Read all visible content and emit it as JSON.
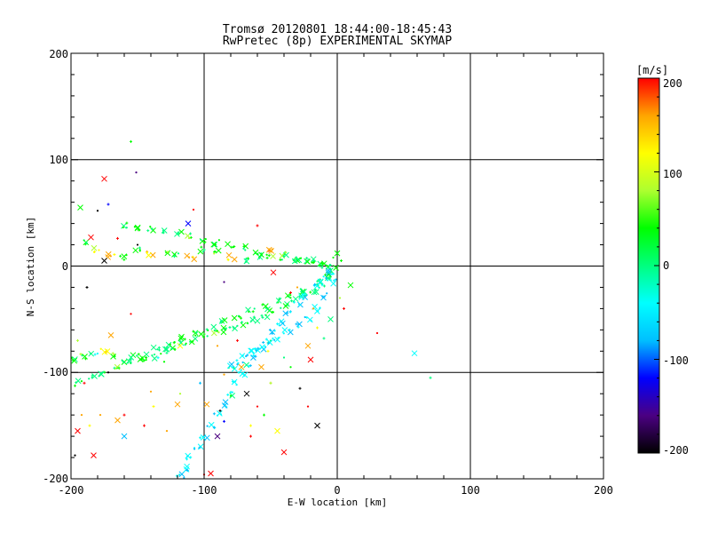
{
  "chart_data": {
    "type": "scatter",
    "title": "Tromsø 20120801 18:44:00-18:45:43",
    "subtitle": "RwPretec (8p) EXPERIMENTAL SKYMAP",
    "xlabel": "E-W location [km]",
    "ylabel": "N-S location [km]",
    "xlim": [
      -200,
      200
    ],
    "ylim": [
      -200,
      200
    ],
    "xticks": [
      "-200",
      "-100",
      "0",
      "100",
      "200"
    ],
    "yticks": [
      "-200",
      "-100",
      "0",
      "100",
      "200"
    ],
    "grid": true,
    "colorbar": {
      "label": "[m/s]",
      "range": [
        -200,
        200
      ],
      "ticks": [
        "200",
        "100",
        "0",
        "-100",
        "-200"
      ],
      "colors": [
        "#000000",
        "#4b0082",
        "#0000ff",
        "#00bfff",
        "#00ffff",
        "#00ff7f",
        "#00ff00",
        "#adff2f",
        "#ffff00",
        "#ffa500",
        "#ff0000"
      ]
    },
    "markers": [
      "x",
      "+",
      "dot"
    ],
    "series": [
      {
        "points": [
          [
            -197,
            -88,
            30
          ],
          [
            -190,
            -85,
            40
          ],
          [
            -183,
            -82,
            -10
          ],
          [
            -175,
            -80,
            150
          ],
          [
            -168,
            -83,
            60
          ],
          [
            -160,
            -90,
            20
          ],
          [
            -152,
            -85,
            10
          ],
          [
            -145,
            -87,
            30
          ],
          [
            -137,
            -85,
            -5
          ],
          [
            -130,
            -80,
            20
          ],
          [
            -122,
            -76,
            40
          ],
          [
            -115,
            -72,
            10
          ],
          [
            -108,
            -69,
            30
          ],
          [
            -100,
            -66,
            20
          ],
          [
            -92,
            -63,
            50
          ],
          [
            -85,
            -60,
            10
          ],
          [
            -78,
            -57,
            20
          ],
          [
            -70,
            -54,
            30
          ],
          [
            -62,
            -50,
            0
          ],
          [
            -55,
            -46,
            20
          ],
          [
            -48,
            -42,
            40
          ],
          [
            -40,
            -38,
            10
          ],
          [
            -33,
            -32,
            20
          ],
          [
            -26,
            -28,
            -10
          ],
          [
            -18,
            -24,
            20
          ],
          [
            -12,
            -18,
            0
          ],
          [
            -6,
            -10,
            10
          ],
          [
            -2,
            -4,
            20
          ]
        ]
      },
      {
        "points": [
          [
            -195,
            -110,
            20
          ],
          [
            -185,
            -104,
            30
          ],
          [
            -175,
            -100,
            10
          ],
          [
            -165,
            -95,
            40
          ],
          [
            -155,
            -90,
            20
          ],
          [
            -145,
            -84,
            30
          ],
          [
            -135,
            -78,
            10
          ],
          [
            -125,
            -73,
            20
          ],
          [
            -115,
            -68,
            50
          ],
          [
            -105,
            -64,
            20
          ],
          [
            -95,
            -58,
            30
          ],
          [
            -85,
            -52,
            10
          ],
          [
            -75,
            -48,
            20
          ],
          [
            -65,
            -42,
            30
          ],
          [
            -55,
            -38,
            10
          ],
          [
            -45,
            -33,
            20
          ],
          [
            -35,
            -27,
            40
          ],
          [
            -25,
            -22,
            10
          ],
          [
            -15,
            -15,
            20
          ],
          [
            -8,
            -9,
            30
          ]
        ]
      },
      {
        "points": [
          [
            -118,
            -198,
            -50
          ],
          [
            -115,
            -190,
            -60
          ],
          [
            -110,
            -180,
            -40
          ],
          [
            -105,
            -170,
            -50
          ],
          [
            -100,
            -160,
            -55
          ],
          [
            -95,
            -150,
            -45
          ],
          [
            -90,
            -140,
            -60
          ],
          [
            -85,
            -130,
            -50
          ],
          [
            -80,
            -120,
            -40
          ],
          [
            -76,
            -110,
            -55
          ],
          [
            -72,
            -100,
            -50
          ],
          [
            -68,
            -92,
            -45
          ],
          [
            -63,
            -85,
            -60
          ],
          [
            -58,
            -78,
            -50
          ],
          [
            -53,
            -70,
            -40
          ],
          [
            -48,
            -62,
            -55
          ],
          [
            -42,
            -54,
            -50
          ],
          [
            -36,
            -45,
            -45
          ],
          [
            -30,
            -36,
            -60
          ],
          [
            -24,
            -28,
            -50
          ],
          [
            -17,
            -20,
            -40
          ],
          [
            -10,
            -12,
            -55
          ],
          [
            -4,
            -5,
            -50
          ]
        ]
      },
      {
        "points": [
          [
            -80,
            -96,
            -40
          ],
          [
            -77,
            -90,
            -60
          ],
          [
            -70,
            -86,
            -50
          ],
          [
            -62,
            -80,
            -40
          ],
          [
            -54,
            -74,
            -55
          ],
          [
            -46,
            -68,
            -50
          ],
          [
            -38,
            -62,
            -45
          ],
          [
            -30,
            -56,
            -60
          ],
          [
            -22,
            -50,
            -50
          ],
          [
            -15,
            -40,
            -40
          ],
          [
            -8,
            -28,
            -55
          ],
          [
            -3,
            -15,
            -50
          ]
        ]
      },
      {
        "points": [
          [
            -190,
            22,
            10
          ],
          [
            -180,
            15,
            120
          ],
          [
            -170,
            10,
            150
          ],
          [
            -160,
            8,
            30
          ],
          [
            -150,
            15,
            20
          ],
          [
            -140,
            12,
            150
          ],
          [
            -130,
            12,
            40
          ],
          [
            -120,
            10,
            20
          ],
          [
            -110,
            8,
            160
          ],
          [
            -100,
            16,
            30
          ],
          [
            -90,
            14,
            40
          ],
          [
            -80,
            8,
            150
          ],
          [
            -70,
            6,
            20
          ],
          [
            -60,
            10,
            30
          ],
          [
            -50,
            16,
            160
          ],
          [
            -40,
            12,
            60
          ],
          [
            -30,
            6,
            20
          ],
          [
            -20,
            5,
            30
          ],
          [
            -12,
            2,
            10
          ],
          [
            -5,
            0,
            20
          ]
        ]
      },
      {
        "points": [
          [
            -160,
            38,
            20
          ],
          [
            -150,
            36,
            30
          ],
          [
            -140,
            35,
            10
          ],
          [
            -130,
            33,
            20
          ],
          [
            -120,
            30,
            20
          ],
          [
            -110,
            28,
            40
          ],
          [
            -100,
            24,
            20
          ],
          [
            -90,
            22,
            30
          ],
          [
            -80,
            20,
            20
          ],
          [
            -70,
            17,
            30
          ],
          [
            -60,
            13,
            20
          ],
          [
            -50,
            10,
            40
          ],
          [
            -40,
            8,
            20
          ],
          [
            -30,
            5,
            30
          ],
          [
            -20,
            3,
            20
          ],
          [
            -10,
            1,
            30
          ]
        ]
      },
      {
        "points": [
          [
            -175,
            82,
            200
          ],
          [
            -172,
            58,
            -120
          ],
          [
            -180,
            52,
            -200
          ],
          [
            -185,
            27,
            190
          ],
          [
            -165,
            26,
            190
          ],
          [
            -150,
            20,
            -200
          ],
          [
            -175,
            5,
            -200
          ],
          [
            -188,
            -20,
            -200
          ],
          [
            -155,
            -45,
            190
          ],
          [
            -170,
            -65,
            150
          ],
          [
            -190,
            -110,
            180
          ],
          [
            -178,
            -140,
            170
          ],
          [
            -160,
            -160,
            -80
          ],
          [
            -145,
            -150,
            190
          ],
          [
            -128,
            -155,
            160
          ],
          [
            -90,
            -160,
            -150
          ],
          [
            -85,
            -146,
            -120
          ],
          [
            -60,
            -132,
            180
          ],
          [
            -40,
            -175,
            200
          ],
          [
            -28,
            -115,
            -200
          ],
          [
            -22,
            -132,
            190
          ],
          [
            -15,
            -150,
            -190
          ],
          [
            -55,
            -140,
            20
          ],
          [
            -108,
            53,
            190
          ],
          [
            -112,
            40,
            -120
          ],
          [
            -60,
            38,
            190
          ],
          [
            -85,
            -15,
            -150
          ],
          [
            -48,
            -6,
            190
          ],
          [
            -35,
            -25,
            180
          ],
          [
            -30,
            -20,
            150
          ],
          [
            -68,
            -120,
            -200
          ],
          [
            -50,
            -110,
            160
          ],
          [
            -100,
            -196,
            190
          ],
          [
            -95,
            -195,
            180
          ],
          [
            -65,
            -160,
            200
          ]
        ]
      },
      {
        "points": [
          [
            -155,
            117,
            20
          ],
          [
            -151,
            88,
            -180
          ],
          [
            -193,
            55,
            40
          ],
          [
            -195,
            -70,
            80
          ],
          [
            -192,
            -140,
            160
          ],
          [
            -183,
            -178,
            200
          ],
          [
            -160,
            -140,
            190
          ],
          [
            -140,
            -118,
            150
          ],
          [
            -120,
            -130,
            170
          ],
          [
            -103,
            -110,
            -100
          ],
          [
            -85,
            -102,
            160
          ],
          [
            -72,
            -95,
            140
          ],
          [
            -50,
            -110,
            90
          ],
          [
            -35,
            -95,
            20
          ],
          [
            -20,
            -88,
            190
          ],
          [
            -15,
            -58,
            120
          ],
          [
            -18,
            -40,
            160
          ],
          [
            -5,
            -50,
            10
          ],
          [
            5,
            -40,
            190
          ],
          [
            30,
            -63,
            180
          ],
          [
            58,
            -82,
            -30
          ],
          [
            70,
            -105,
            0
          ],
          [
            -90,
            -75,
            160
          ],
          [
            -118,
            -75,
            100
          ],
          [
            -65,
            -150,
            120
          ],
          [
            -130,
            -90,
            40
          ],
          [
            -45,
            -155,
            100
          ],
          [
            -75,
            -70,
            180
          ]
        ]
      },
      {
        "points": [
          [
            -197,
            -178,
            -200
          ],
          [
            -195,
            -155,
            180
          ],
          [
            -186,
            -150,
            120
          ],
          [
            -172,
            -100,
            -200
          ],
          [
            -165,
            -145,
            150
          ],
          [
            -138,
            -132,
            100
          ],
          [
            -118,
            -120,
            60
          ],
          [
            -98,
            -130,
            140
          ],
          [
            -88,
            -136,
            -190
          ],
          [
            -80,
            -122,
            40
          ],
          [
            -57,
            -95,
            150
          ],
          [
            -52,
            -80,
            130
          ],
          [
            -40,
            -86,
            10
          ],
          [
            -22,
            -75,
            140
          ],
          [
            -10,
            -68,
            10
          ],
          [
            2,
            -30,
            60
          ],
          [
            10,
            -18,
            20
          ],
          [
            3,
            5,
            30
          ],
          [
            -3,
            8,
            20
          ],
          [
            0,
            12,
            40
          ]
        ]
      }
    ]
  }
}
